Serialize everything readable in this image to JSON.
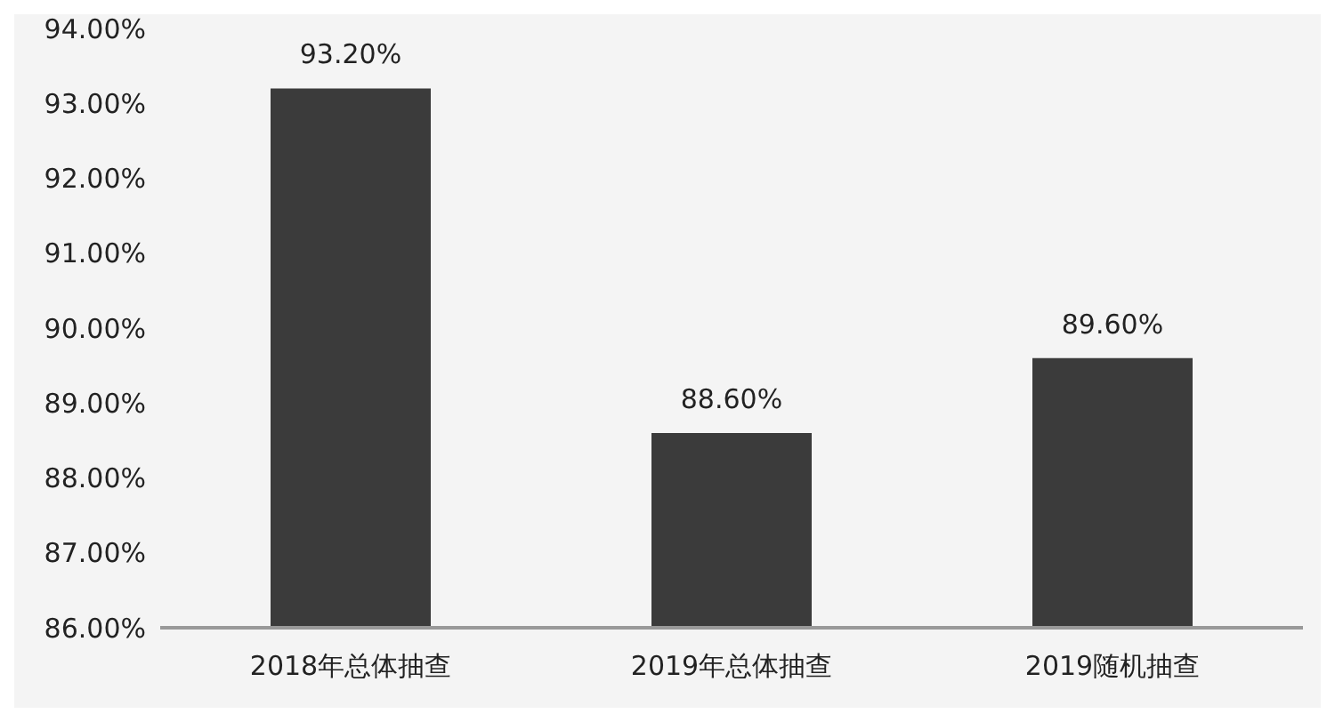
{
  "chart_data": {
    "type": "bar",
    "categories": [
      "2018年总体抽查",
      "2019年总体抽查",
      "2019随机抽查"
    ],
    "values": [
      93.2,
      88.6,
      89.6
    ],
    "value_labels": [
      "93.20%",
      "88.60%",
      "89.60%"
    ],
    "color": "#3b3b3b",
    "ylim": [
      86,
      94
    ],
    "yticks": [
      {
        "value": 86,
        "label": "86.00%"
      },
      {
        "value": 87,
        "label": "87.00%"
      },
      {
        "value": 88,
        "label": "88.00%"
      },
      {
        "value": 89,
        "label": "89.00%"
      },
      {
        "value": 90,
        "label": "90.00%"
      },
      {
        "value": 91,
        "label": "91.00%"
      },
      {
        "value": 92,
        "label": "92.00%"
      },
      {
        "value": 93,
        "label": "93.00%"
      },
      {
        "value": 94,
        "label": "94.00%"
      }
    ],
    "grid": false,
    "legend": false
  }
}
